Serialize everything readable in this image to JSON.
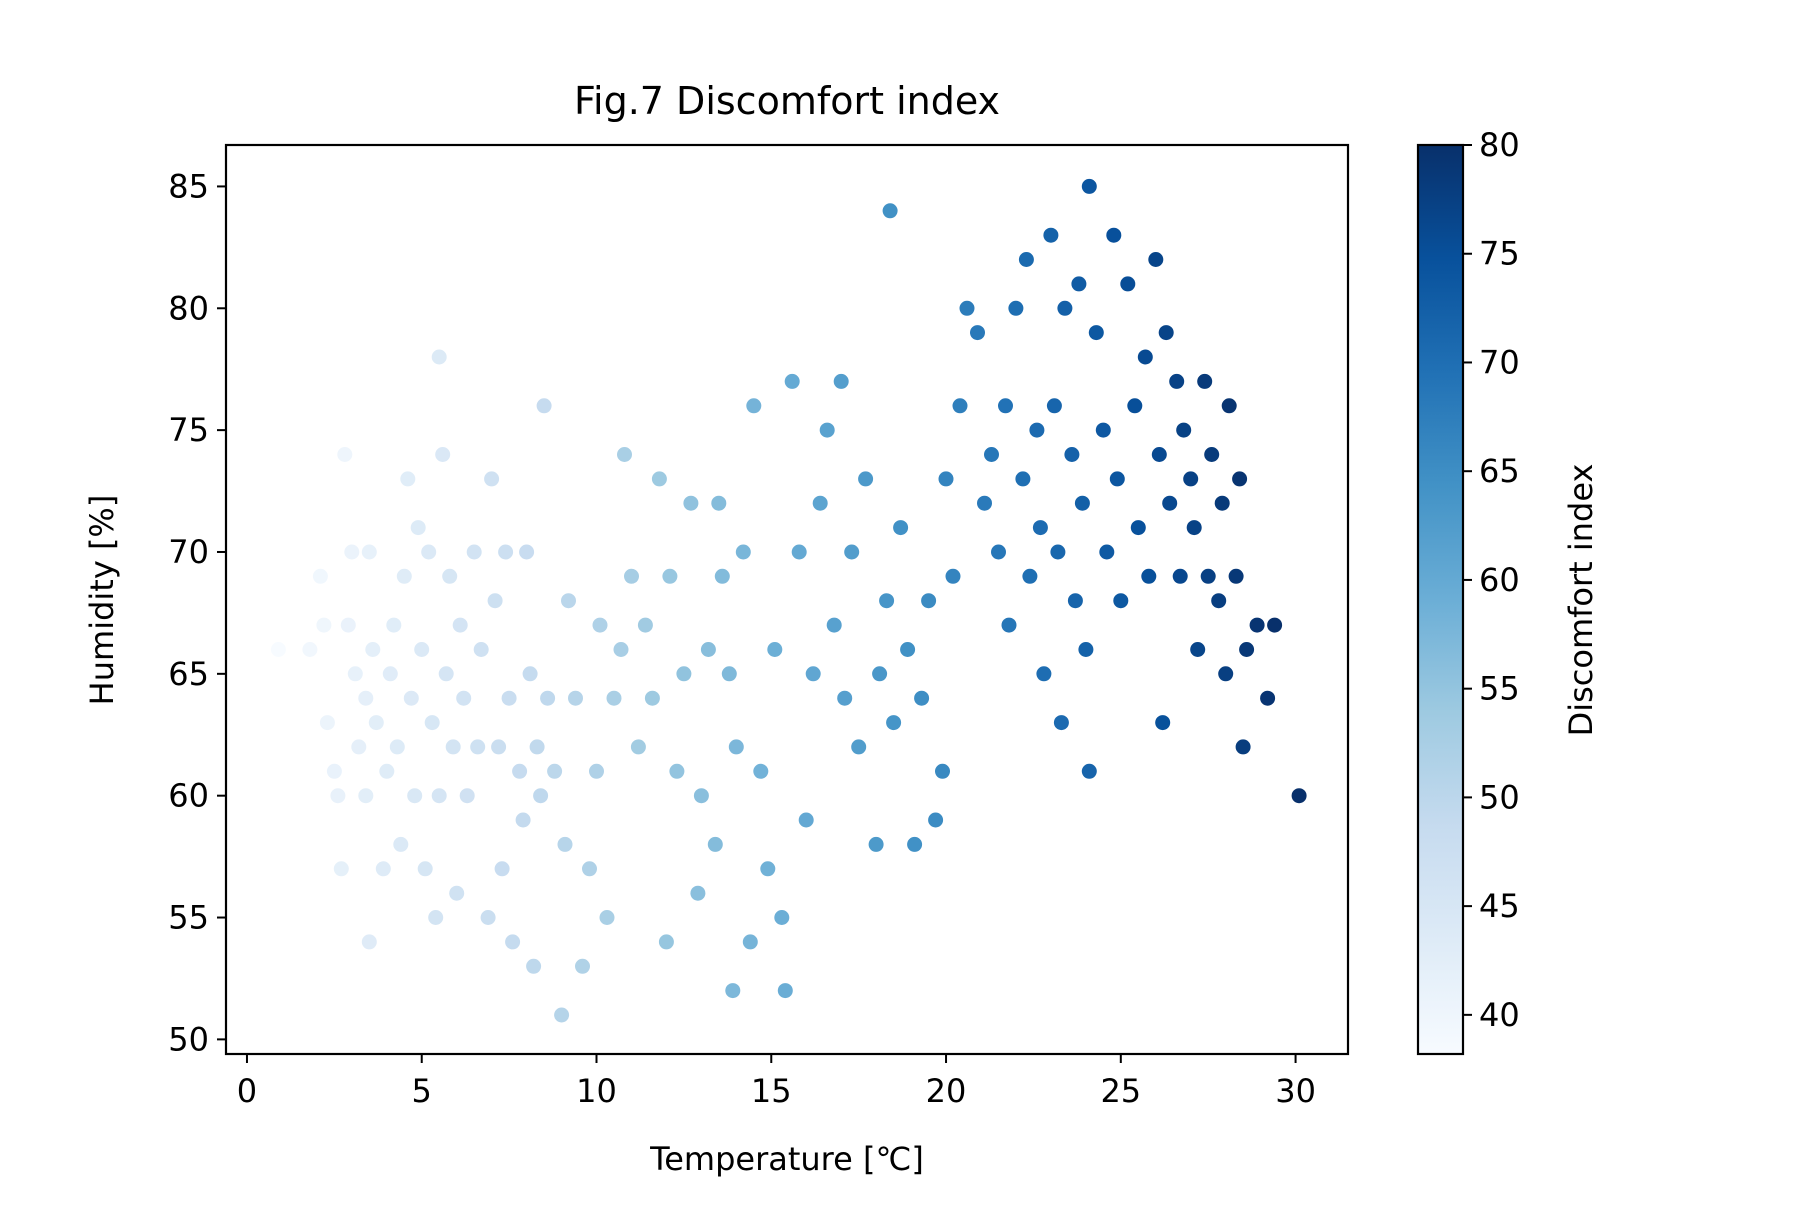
{
  "chart_data": {
    "type": "scatter",
    "title": "Fig.7 Discomfort index",
    "xlabel": "Temperature [℃]",
    "ylabel": "Humidity [%]",
    "xlim": [
      -0.6,
      31.5
    ],
    "ylim": [
      49.4,
      86.7
    ],
    "xticks": [
      "0",
      "5",
      "10",
      "15",
      "20",
      "25",
      "30"
    ],
    "yticks": [
      "50",
      "55",
      "60",
      "65",
      "70",
      "75",
      "80",
      "85"
    ],
    "grid": false,
    "colorbar": {
      "label": "Discomfort index",
      "cmap": "Blues",
      "range": [
        38.2,
        80
      ],
      "ticks": [
        "40",
        "45",
        "50",
        "55",
        "60",
        "65",
        "70",
        "75",
        "80"
      ],
      "colors": [
        "#f7fbff",
        "#deebf7",
        "#c6dbef",
        "#9ecae1",
        "#6baed6",
        "#4292c6",
        "#2171b5",
        "#08519c",
        "#08306b"
      ]
    },
    "points": [
      [
        0.9,
        66
      ],
      [
        1.8,
        66
      ],
      [
        2.1,
        69
      ],
      [
        2.2,
        67
      ],
      [
        2.3,
        63
      ],
      [
        2.5,
        61
      ],
      [
        2.6,
        60
      ],
      [
        2.7,
        57
      ],
      [
        2.8,
        74
      ],
      [
        2.9,
        67
      ],
      [
        3.0,
        70
      ],
      [
        3.1,
        65
      ],
      [
        3.2,
        62
      ],
      [
        3.4,
        64
      ],
      [
        3.4,
        60
      ],
      [
        3.5,
        54
      ],
      [
        3.5,
        70
      ],
      [
        3.6,
        66
      ],
      [
        3.7,
        63
      ],
      [
        3.9,
        57
      ],
      [
        4.0,
        61
      ],
      [
        4.1,
        65
      ],
      [
        4.2,
        67
      ],
      [
        4.3,
        62
      ],
      [
        4.4,
        58
      ],
      [
        4.5,
        69
      ],
      [
        4.6,
        73
      ],
      [
        4.7,
        64
      ],
      [
        4.8,
        60
      ],
      [
        4.9,
        71
      ],
      [
        5.0,
        66
      ],
      [
        5.1,
        57
      ],
      [
        5.2,
        70
      ],
      [
        5.3,
        63
      ],
      [
        5.4,
        55
      ],
      [
        5.5,
        60
      ],
      [
        5.5,
        78
      ],
      [
        5.6,
        74
      ],
      [
        5.7,
        65
      ],
      [
        5.8,
        69
      ],
      [
        5.9,
        62
      ],
      [
        6.0,
        56
      ],
      [
        6.1,
        67
      ],
      [
        6.2,
        64
      ],
      [
        6.3,
        60
      ],
      [
        6.5,
        70
      ],
      [
        6.6,
        62
      ],
      [
        6.7,
        66
      ],
      [
        6.9,
        55
      ],
      [
        7.0,
        73
      ],
      [
        7.1,
        68
      ],
      [
        7.2,
        62
      ],
      [
        7.3,
        57
      ],
      [
        7.4,
        70
      ],
      [
        7.5,
        64
      ],
      [
        7.6,
        54
      ],
      [
        7.8,
        61
      ],
      [
        7.9,
        59
      ],
      [
        8.0,
        70
      ],
      [
        8.1,
        65
      ],
      [
        8.2,
        53
      ],
      [
        8.3,
        62
      ],
      [
        8.4,
        60
      ],
      [
        8.5,
        76
      ],
      [
        8.6,
        64
      ],
      [
        8.8,
        61
      ],
      [
        9.0,
        51
      ],
      [
        9.1,
        58
      ],
      [
        9.2,
        68
      ],
      [
        9.4,
        64
      ],
      [
        9.6,
        53
      ],
      [
        9.8,
        57
      ],
      [
        10.0,
        61
      ],
      [
        10.1,
        67
      ],
      [
        10.3,
        55
      ],
      [
        10.5,
        64
      ],
      [
        10.7,
        66
      ],
      [
        10.8,
        74
      ],
      [
        11.0,
        69
      ],
      [
        11.2,
        62
      ],
      [
        11.4,
        67
      ],
      [
        11.6,
        64
      ],
      [
        11.8,
        73
      ],
      [
        12.0,
        54
      ],
      [
        12.1,
        69
      ],
      [
        12.3,
        61
      ],
      [
        12.5,
        65
      ],
      [
        12.7,
        72
      ],
      [
        12.9,
        56
      ],
      [
        13.0,
        60
      ],
      [
        13.2,
        66
      ],
      [
        13.4,
        58
      ],
      [
        13.5,
        72
      ],
      [
        13.6,
        69
      ],
      [
        13.8,
        65
      ],
      [
        13.9,
        52
      ],
      [
        14.0,
        62
      ],
      [
        14.2,
        70
      ],
      [
        14.4,
        54
      ],
      [
        14.5,
        76
      ],
      [
        14.7,
        61
      ],
      [
        14.9,
        57
      ],
      [
        15.1,
        66
      ],
      [
        15.3,
        55
      ],
      [
        15.4,
        52
      ],
      [
        15.6,
        77
      ],
      [
        15.8,
        70
      ],
      [
        16.0,
        59
      ],
      [
        16.2,
        65
      ],
      [
        16.4,
        72
      ],
      [
        16.6,
        75
      ],
      [
        16.8,
        67
      ],
      [
        17.0,
        77
      ],
      [
        17.1,
        64
      ],
      [
        17.3,
        70
      ],
      [
        17.5,
        62
      ],
      [
        17.7,
        73
      ],
      [
        18.0,
        58
      ],
      [
        18.1,
        65
      ],
      [
        18.3,
        68
      ],
      [
        18.4,
        84
      ],
      [
        18.5,
        63
      ],
      [
        18.7,
        71
      ],
      [
        18.9,
        66
      ],
      [
        19.1,
        58
      ],
      [
        19.3,
        64
      ],
      [
        19.5,
        68
      ],
      [
        19.7,
        59
      ],
      [
        19.9,
        61
      ],
      [
        20.0,
        73
      ],
      [
        20.2,
        69
      ],
      [
        20.4,
        76
      ],
      [
        20.6,
        80
      ],
      [
        20.9,
        79
      ],
      [
        21.1,
        72
      ],
      [
        21.3,
        74
      ],
      [
        21.5,
        70
      ],
      [
        21.7,
        76
      ],
      [
        21.8,
        67
      ],
      [
        22.0,
        80
      ],
      [
        22.2,
        73
      ],
      [
        22.3,
        82
      ],
      [
        22.4,
        69
      ],
      [
        22.6,
        75
      ],
      [
        22.7,
        71
      ],
      [
        22.8,
        65
      ],
      [
        23.0,
        83
      ],
      [
        23.1,
        76
      ],
      [
        23.2,
        70
      ],
      [
        23.3,
        63
      ],
      [
        23.4,
        80
      ],
      [
        23.6,
        74
      ],
      [
        23.7,
        68
      ],
      [
        23.8,
        81
      ],
      [
        23.9,
        72
      ],
      [
        24.0,
        66
      ],
      [
        24.1,
        85
      ],
      [
        24.1,
        61
      ],
      [
        24.3,
        79
      ],
      [
        24.5,
        75
      ],
      [
        24.6,
        70
      ],
      [
        24.8,
        83
      ],
      [
        24.9,
        73
      ],
      [
        25.0,
        68
      ],
      [
        25.2,
        81
      ],
      [
        25.4,
        76
      ],
      [
        25.5,
        71
      ],
      [
        25.7,
        78
      ],
      [
        25.8,
        69
      ],
      [
        26.0,
        82
      ],
      [
        26.1,
        74
      ],
      [
        26.2,
        63
      ],
      [
        26.3,
        79
      ],
      [
        26.4,
        72
      ],
      [
        26.6,
        77
      ],
      [
        26.7,
        69
      ],
      [
        26.8,
        75
      ],
      [
        27.0,
        73
      ],
      [
        27.1,
        71
      ],
      [
        27.2,
        66
      ],
      [
        27.4,
        77
      ],
      [
        27.5,
        69
      ],
      [
        27.6,
        74
      ],
      [
        27.8,
        68
      ],
      [
        27.9,
        72
      ],
      [
        28.0,
        65
      ],
      [
        28.1,
        76
      ],
      [
        28.3,
        69
      ],
      [
        28.4,
        73
      ],
      [
        28.5,
        62
      ],
      [
        28.6,
        66
      ],
      [
        28.9,
        67
      ],
      [
        29.2,
        64
      ],
      [
        29.4,
        67
      ],
      [
        30.1,
        60
      ]
    ]
  }
}
